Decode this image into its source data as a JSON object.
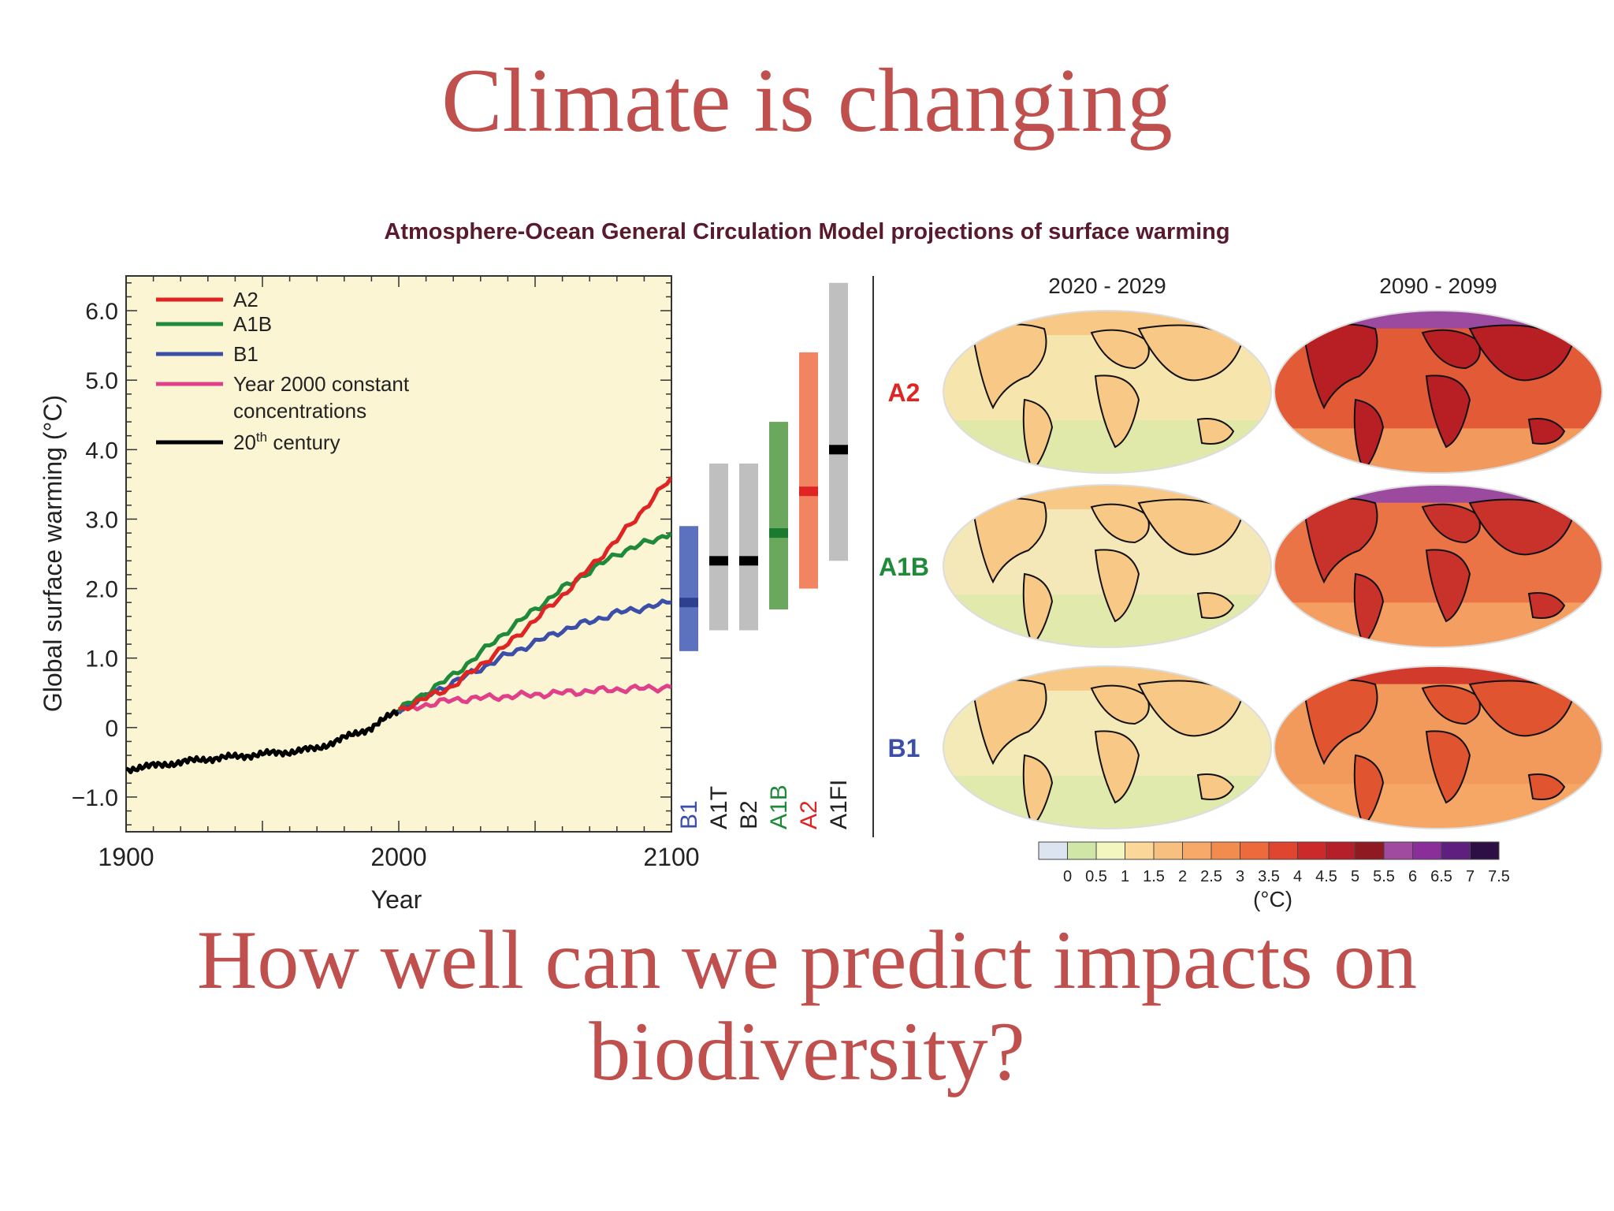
{
  "slide": {
    "title": "Climate is changing",
    "subtitle_line1": "How well can we predict impacts on",
    "subtitle_line2": "biodiversity?"
  },
  "chart_data": [
    {
      "type": "line",
      "title": "Atmosphere-Ocean General Circulation Model projections of surface warming",
      "xlabel": "Year",
      "ylabel": "Global surface warming (°C)",
      "xlim": [
        1900,
        2100
      ],
      "ylim": [
        -1.5,
        6.5
      ],
      "x_ticks": [
        "1900",
        "2000",
        "2100"
      ],
      "y_ticks": [
        {
          "value": 6.0,
          "label": "6.0"
        },
        {
          "value": 5.0,
          "label": "5.0"
        },
        {
          "value": 4.0,
          "label": "4.0"
        },
        {
          "value": 3.0,
          "label": "3.0"
        },
        {
          "value": 2.0,
          "label": "2.0"
        },
        {
          "value": 1.0,
          "label": "1.0"
        },
        {
          "value": 0,
          "label": "0"
        },
        {
          "value": -1.0,
          "label": "−1.0"
        }
      ],
      "legend_position": "top-left",
      "series": [
        {
          "name": "A2",
          "color": "#e02424",
          "x": [
            2000,
            2020,
            2040,
            2060,
            2080,
            2100
          ],
          "y": [
            0.25,
            0.6,
            1.2,
            1.9,
            2.7,
            3.6
          ]
        },
        {
          "name": "A1B",
          "color": "#1f8a3a",
          "x": [
            2000,
            2020,
            2040,
            2060,
            2080,
            2100
          ],
          "y": [
            0.25,
            0.75,
            1.4,
            2.0,
            2.5,
            2.8
          ]
        },
        {
          "name": "B1",
          "color": "#3b4fa8",
          "x": [
            2000,
            2020,
            2040,
            2060,
            2080,
            2100
          ],
          "y": [
            0.25,
            0.65,
            1.05,
            1.4,
            1.65,
            1.8
          ]
        },
        {
          "name": "Year 2000 constant",
          "name_line2": "concentrations",
          "color": "#e0408a",
          "x": [
            2000,
            2020,
            2040,
            2060,
            2080,
            2100
          ],
          "y": [
            0.25,
            0.4,
            0.45,
            0.5,
            0.55,
            0.58
          ]
        },
        {
          "name": "20",
          "name_sup": "th",
          "name_rest": " century",
          "color": "#000000",
          "x": [
            1900,
            1910,
            1920,
            1930,
            1940,
            1950,
            1960,
            1970,
            1980,
            1990,
            2000
          ],
          "y": [
            -0.6,
            -0.55,
            -0.5,
            -0.45,
            -0.42,
            -0.38,
            -0.35,
            -0.3,
            -0.15,
            0.0,
            0.25
          ]
        }
      ]
    },
    {
      "type": "bar",
      "subtype": "range",
      "categories": [
        "B1",
        "A1T",
        "B2",
        "A1B",
        "A2",
        "A1FI"
      ],
      "ranges": [
        {
          "low": 1.1,
          "high": 2.9,
          "best": 1.8,
          "color": "#4a63b8",
          "label_color": "#3b4fa8"
        },
        {
          "low": 1.4,
          "high": 3.8,
          "best": 2.4,
          "color": "#b8b8b8",
          "label_color": "#222222"
        },
        {
          "low": 1.4,
          "high": 3.8,
          "best": 2.4,
          "color": "#b8b8b8",
          "label_color": "#222222"
        },
        {
          "low": 1.7,
          "high": 4.4,
          "best": 2.8,
          "color": "#5a9e4b",
          "label_color": "#1f8a3a"
        },
        {
          "low": 2.0,
          "high": 5.4,
          "best": 3.4,
          "color": "#f07850",
          "label_color": "#e02424"
        },
        {
          "low": 2.4,
          "high": 6.4,
          "best": 4.0,
          "color": "#b8b8b8",
          "label_color": "#222222"
        }
      ]
    },
    {
      "type": "heatmap",
      "subtype": "map-panels",
      "columns": [
        "2020 - 2029",
        "2090 - 2099"
      ],
      "rows": [
        {
          "label": "A2",
          "color": "#e02424"
        },
        {
          "label": "A1B",
          "color": "#1f8a3a"
        },
        {
          "label": "B1",
          "color": "#3b4fa8"
        }
      ],
      "colorbar": {
        "unit": "(°C)",
        "tick_labels": [
          "0",
          "0.5",
          "1",
          "1.5",
          "2",
          "2.5",
          "3",
          "3.5",
          "4",
          "4.5",
          "5",
          "5.5",
          "6",
          "6.5",
          "7",
          "7.5"
        ],
        "colors": [
          "#dce4f2",
          "#cfe6a6",
          "#f4f6c0",
          "#fbd89a",
          "#f8c080",
          "#f6a968",
          "#f28c4e",
          "#ec6a3c",
          "#e0452f",
          "#cc2a2a",
          "#b51f2a",
          "#8f1a22",
          "#a04aa0",
          "#8a2f9a",
          "#5e1f7e",
          "#2e0f45"
        ]
      }
    }
  ]
}
